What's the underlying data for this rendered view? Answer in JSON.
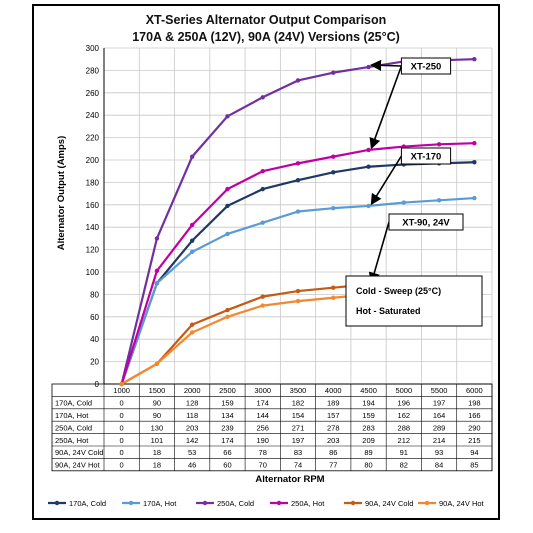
{
  "chart_data": {
    "type": "line",
    "title": "XT-Series Alternator Output Comparison",
    "subtitle": "170A & 250A (12V), 90A (24V) Versions (25°C)",
    "xlabel": "Alternator RPM",
    "ylabel": "Alternator Output (Amps)",
    "ylim": [
      0,
      300
    ],
    "ytick_step": 20,
    "grid": true,
    "legend_position": "bottom",
    "x": [
      "1000",
      "1500",
      "2000",
      "2500",
      "3000",
      "3500",
      "4000",
      "4500",
      "5000",
      "5500",
      "6000"
    ],
    "series": [
      {
        "name": "170A, Cold",
        "color": "#1f3864",
        "values": [
          0,
          90,
          128,
          159,
          174,
          182,
          189,
          194,
          196,
          197,
          198
        ]
      },
      {
        "name": "170A, Hot",
        "color": "#5b9bd5",
        "values": [
          0,
          90,
          118,
          134,
          144,
          154,
          157,
          159,
          162,
          164,
          166
        ]
      },
      {
        "name": "250A, Cold",
        "color": "#7030a0",
        "values": [
          0,
          130,
          203,
          239,
          256,
          271,
          278,
          283,
          288,
          289,
          290
        ]
      },
      {
        "name": "250A, Hot",
        "color": "#c000a0",
        "values": [
          0,
          101,
          142,
          174,
          190,
          197,
          203,
          209,
          212,
          214,
          215
        ]
      },
      {
        "name": "90A, 24V Cold",
        "color": "#c55a11",
        "values": [
          0,
          18,
          53,
          66,
          78,
          83,
          86,
          89,
          91,
          93,
          94
        ]
      },
      {
        "name": "90A, 24V Hot",
        "color": "#f4882e",
        "values": [
          0,
          18,
          46,
          60,
          70,
          74,
          77,
          80,
          82,
          84,
          85
        ]
      }
    ],
    "annotations": [
      {
        "text": "XT-250",
        "targets": [
          {
            "series": 2,
            "index": 7
          },
          {
            "series": 3,
            "index": 7
          }
        ]
      },
      {
        "text": "XT-170",
        "targets": [
          {
            "series": 1,
            "index": 7
          }
        ]
      },
      {
        "text": "XT-90, 24V",
        "targets": [
          {
            "series": 4,
            "index": 7
          }
        ]
      }
    ],
    "notes": [
      "Cold - Sweep (25°C)",
      "Hot - Saturated"
    ]
  }
}
